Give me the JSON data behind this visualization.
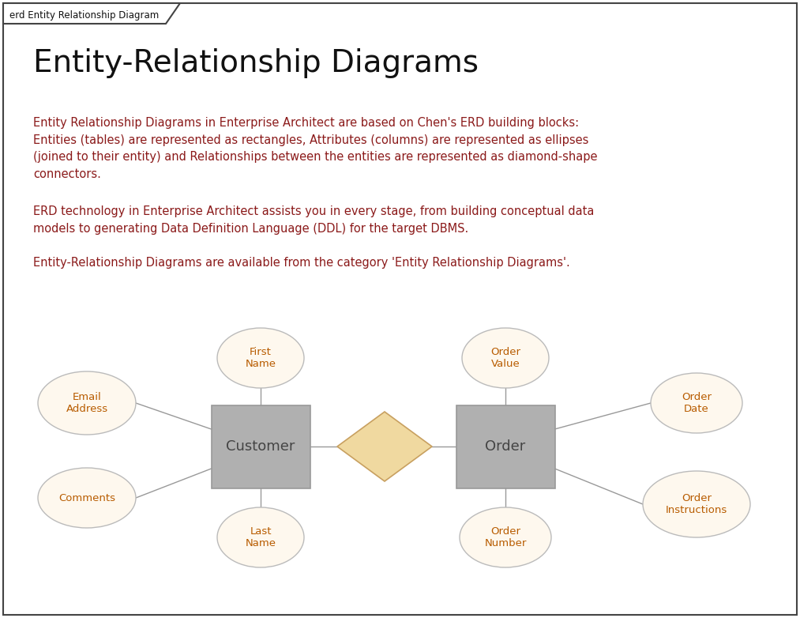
{
  "title": "Entity-Relationship Diagrams",
  "tab_label": "erd Entity Relationship Diagram",
  "para1": "Entity Relationship Diagrams in Enterprise Architect are based on Chen's ERD building blocks:\nEntities (tables) are represented as rectangles, Attributes (columns) are represented as ellipses\n(joined to their entity) and Relationships between the entities are represented as diamond-shape\nconnectors.",
  "para2": "ERD technology in Enterprise Architect assists you in every stage, from building conceptual data\nmodels to generating Data Definition Language (DDL) for the target DBMS.",
  "para3": "Entity-Relationship Diagrams are available from the category 'Entity Relationship Diagrams'.",
  "text_color": "#8B1A1A",
  "title_color": "#111111",
  "bg_color": "#ffffff",
  "border_color": "#444444",
  "entity_fill": "#b0b0b0",
  "entity_border": "#999999",
  "entity_text_color": "#444444",
  "ellipse_fill": "#fef8ee",
  "ellipse_border": "#bbbbbb",
  "ellipse_text_color": "#b85c00",
  "diamond_fill": "#f0d9a0",
  "diamond_border": "#c8a060",
  "line_color": "#999999"
}
